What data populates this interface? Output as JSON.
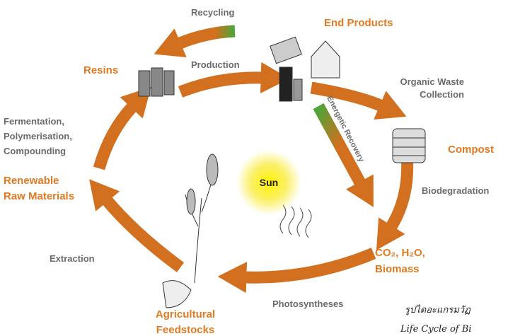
{
  "center": "Sun",
  "stages": {
    "end_products": "End Products",
    "resins": "Resins",
    "compost": "Compost",
    "renewable_raw_materials": [
      "Renewable",
      "Raw Materials"
    ],
    "biomass": [
      "CO₂, H₂O,",
      "Biomass"
    ],
    "agricultural_feedstocks": [
      "Agricultural",
      "Feedstocks"
    ]
  },
  "processes": {
    "recycling": "Recycling",
    "production": "Production",
    "organic_waste_collection": [
      "Organic Waste",
      "Collection"
    ],
    "energetic_recovery": "Energetic Recovery",
    "biodegradation": "Biodegradation",
    "photosyntheses": "Photosyntheses",
    "extraction": "Extraction",
    "fermentation": [
      "Fermentation,",
      "Polymerisation,",
      "Compounding"
    ]
  },
  "caption": [
    "รูปไดอะแกรมวัฏ",
    "Life Cycle of Bi"
  ]
}
